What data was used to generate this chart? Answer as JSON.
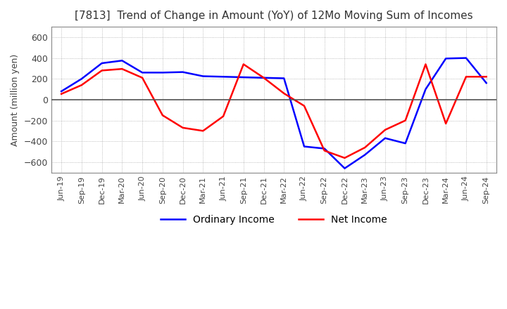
{
  "title": "[7813]  Trend of Change in Amount (YoY) of 12Mo Moving Sum of Incomes",
  "ylabel": "Amount (million yen)",
  "ylim": [
    -700,
    700
  ],
  "yticks": [
    -600,
    -400,
    -200,
    0,
    200,
    400,
    600
  ],
  "x_labels": [
    "Jun-19",
    "Sep-19",
    "Dec-19",
    "Mar-20",
    "Jun-20",
    "Sep-20",
    "Dec-20",
    "Mar-21",
    "Jun-21",
    "Sep-21",
    "Dec-21",
    "Mar-22",
    "Jun-22",
    "Sep-22",
    "Dec-22",
    "Mar-23",
    "Jun-23",
    "Sep-23",
    "Dec-23",
    "Mar-24",
    "Jun-24",
    "Sep-24"
  ],
  "ordinary_income": [
    80,
    200,
    350,
    375,
    260,
    260,
    265,
    225,
    220,
    215,
    210,
    205,
    -450,
    -470,
    -660,
    -530,
    -370,
    -420,
    100,
    395,
    400,
    160
  ],
  "net_income": [
    55,
    140,
    280,
    295,
    210,
    -150,
    -270,
    -300,
    -160,
    340,
    210,
    60,
    -60,
    -490,
    -560,
    -460,
    -290,
    -200,
    340,
    -230,
    220,
    220
  ],
  "ordinary_color": "#0000ff",
  "net_color": "#ff0000",
  "legend_labels": [
    "Ordinary Income",
    "Net Income"
  ],
  "background_color": "#ffffff",
  "grid_color": "#aaaaaa"
}
